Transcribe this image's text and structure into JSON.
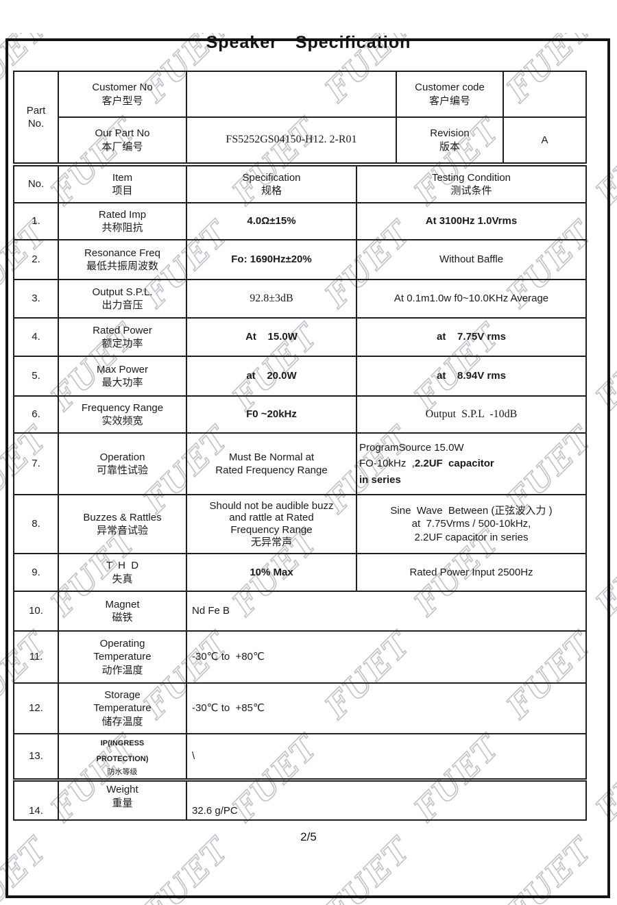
{
  "page": {
    "title": "Speaker  Specification",
    "watermark_text": "FUET",
    "footer_page": "2/5"
  },
  "part_block": {
    "part_label": "Part\nNo.",
    "customer_no": {
      "en": "Customer No",
      "zh": "客户型号",
      "value": ""
    },
    "customer_code": {
      "en": "Customer code",
      "zh": "客户编号",
      "value": ""
    },
    "our_part_no": {
      "en": "Our Part No",
      "zh": "本厂编号",
      "value": "FS5252GS04150-H12. 2-R01"
    },
    "revision": {
      "en": "Revision",
      "zh": "版本",
      "value": "A"
    }
  },
  "spec_table": {
    "header": {
      "no": "No.",
      "item_en": "Item",
      "item_zh": "项目",
      "spec_en": "Specification",
      "spec_zh": "规格",
      "test_en": "Testing Condition",
      "test_zh": "测试条件"
    },
    "rows": [
      {
        "no": "1.",
        "item_en": "Rated Imp",
        "item_zh": "共称阻抗",
        "spec": "4.0Ω±15%",
        "test": "At 3100Hz 1.0Vrms"
      },
      {
        "no": "2.",
        "item_en": "Resonance Freq",
        "item_zh": "最低共振周波数",
        "spec": "Fo: 1690Hz±20%",
        "test": "Without Baffle"
      },
      {
        "no": "3.",
        "item_en": "Output S.P.L.",
        "item_zh": "出力音压",
        "spec": "92.8±3dB",
        "test": "At 0.1m1.0w f0~10.0KHz Average"
      },
      {
        "no": "4.",
        "item_en": "Rated Power",
        "item_zh": "额定功率",
        "spec": "At    15.0W",
        "test": "at    7.75V rms"
      },
      {
        "no": "5.",
        "item_en": "Max Power",
        "item_zh": "最大功率",
        "spec": "at    20.0W",
        "test": "at    8.94V rms"
      },
      {
        "no": "6.",
        "item_en": "Frequency Range",
        "item_zh": "实效频宽",
        "spec": "F0 ~20kHz",
        "test": "Output  S.P.L  -10dB"
      },
      {
        "no": "7.",
        "item_en": "Operation",
        "item_zh": "可靠性试验",
        "spec": "Must Be Normal at\nRated Frequency Range",
        "test_line1": "ProgramSource  15.0W",
        "test_line2": "FO-10kHz  ,",
        "test_line2_bold": "2.2UF  capacitor",
        "test_line3_bold": "in series"
      },
      {
        "no": "8.",
        "item_en": "Buzzes & Rattles",
        "item_zh": "异常音试验",
        "spec": "Should not be audible buzz\nand rattle at Rated\nFrequency Range\n无异常声",
        "test": "Sine  Wave  Between (正弦波入力 )\nat  7.75Vrms / 500-10kHz,\n2.2UF capacitor in series"
      },
      {
        "no": "9.",
        "item_en": "T  H  D",
        "item_zh": "失真",
        "spec": "10% Max",
        "test": "Rated Power Input 2500Hz"
      },
      {
        "no": "10.",
        "item_en": "Magnet",
        "item_zh": "磁铁",
        "value": "Nd Fe B"
      },
      {
        "no": "11.",
        "item_en": "Operating\nTemperature",
        "item_zh": "动作温度",
        "value": "-30℃ to  +80℃"
      },
      {
        "no": "12.",
        "item_en": "Storage\nTemperature",
        "item_zh": "储存温度",
        "value": "-30℃ to  +85℃"
      },
      {
        "no": "13.",
        "item_en": "IP(INGRESS\nPROTECTION)",
        "item_zh": "防水等级",
        "value": "\\"
      },
      {
        "no": "14.",
        "item_en": "Weight",
        "item_zh": "重量",
        "value": "32.6 g/PC"
      }
    ]
  }
}
